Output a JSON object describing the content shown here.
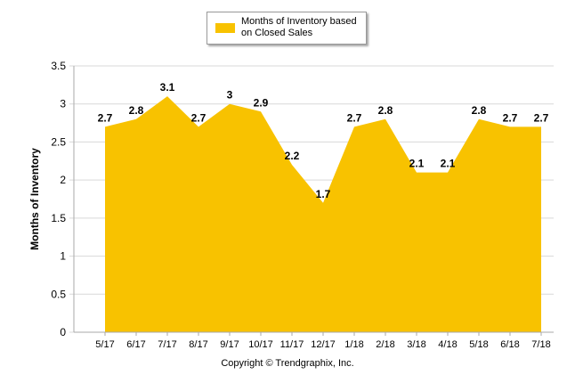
{
  "chart_data": {
    "type": "area",
    "categories": [
      "5/17",
      "6/17",
      "7/17",
      "8/17",
      "9/17",
      "10/17",
      "11/17",
      "12/17",
      "1/18",
      "2/18",
      "3/18",
      "4/18",
      "5/18",
      "6/18",
      "7/18"
    ],
    "series": [
      {
        "name": "Months of Inventory based on Closed Sales",
        "values": [
          2.7,
          2.8,
          3.1,
          2.7,
          3,
          2.9,
          2.2,
          1.7,
          2.7,
          2.8,
          2.1,
          2.1,
          2.8,
          2.7,
          2.7
        ],
        "labels": [
          "2.7",
          "2.8",
          "3.1",
          "2.7",
          "3",
          "2.9",
          "2.2",
          "1.7",
          "2.7",
          "2.8",
          "2.1",
          "2.1",
          "2.8",
          "2.7",
          "2.7"
        ],
        "color": "#F8C200"
      }
    ],
    "yticks": [
      "0",
      "0.5",
      "1",
      "1.5",
      "2",
      "2.5",
      "3",
      "3.5"
    ],
    "ylabel": "Months of Inventory",
    "xlabel": "",
    "ylim": [
      0,
      3.5
    ],
    "grid": true,
    "legend_placement": "top-center"
  },
  "legend": {
    "label": "Months of Inventory based on Closed Sales"
  },
  "footer": {
    "copyright": "Copyright © Trendgraphix, Inc."
  },
  "colors": {
    "area": "#F8C200",
    "grid": "#d9d9d9",
    "axis": "#aaaaaa"
  }
}
